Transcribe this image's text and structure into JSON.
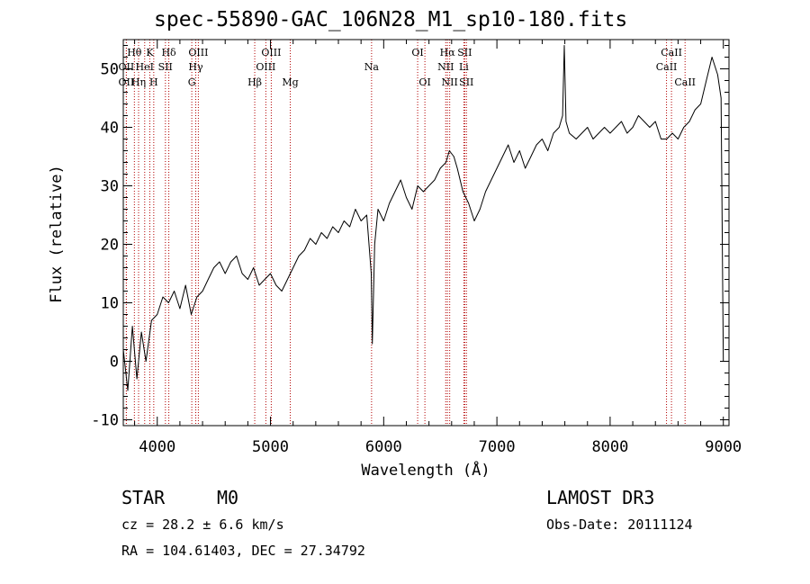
{
  "chart_data": {
    "type": "line",
    "title": "spec-55890-GAC_106N28_M1_sp10-180.fits",
    "xlabel": "Wavelength (Å)",
    "ylabel": "Flux (relative)",
    "xlim": [
      3700,
      9050
    ],
    "ylim": [
      -11,
      55
    ],
    "xticks": [
      4000,
      5000,
      6000,
      7000,
      8000,
      9000
    ],
    "yticks": [
      -10,
      0,
      10,
      20,
      30,
      40,
      50
    ],
    "grid": false,
    "series": [
      {
        "name": "spectrum",
        "color": "#000000",
        "x": [
          3700,
          3740,
          3780,
          3820,
          3860,
          3900,
          3950,
          4000,
          4050,
          4100,
          4150,
          4200,
          4250,
          4300,
          4350,
          4400,
          4450,
          4500,
          4550,
          4600,
          4650,
          4700,
          4750,
          4800,
          4850,
          4900,
          4950,
          5000,
          5050,
          5100,
          5150,
          5200,
          5250,
          5300,
          5350,
          5400,
          5450,
          5500,
          5550,
          5600,
          5650,
          5700,
          5750,
          5800,
          5850,
          5890,
          5900,
          5920,
          5950,
          6000,
          6050,
          6100,
          6150,
          6200,
          6250,
          6300,
          6350,
          6400,
          6450,
          6500,
          6550,
          6580,
          6620,
          6650,
          6700,
          6750,
          6800,
          6850,
          6900,
          6950,
          7000,
          7050,
          7100,
          7150,
          7200,
          7250,
          7300,
          7350,
          7400,
          7450,
          7500,
          7550,
          7580,
          7595,
          7610,
          7640,
          7700,
          7750,
          7800,
          7850,
          7900,
          7950,
          8000,
          8050,
          8100,
          8150,
          8200,
          8250,
          8300,
          8350,
          8400,
          8450,
          8500,
          8550,
          8600,
          8650,
          8700,
          8750,
          8800,
          8850,
          8900,
          8950,
          8980,
          9000
        ],
        "y": [
          2,
          -5,
          6,
          -3,
          5,
          0,
          7,
          8,
          11,
          10,
          12,
          9,
          13,
          8,
          11,
          12,
          14,
          16,
          17,
          15,
          17,
          18,
          15,
          14,
          16,
          13,
          14,
          15,
          13,
          12,
          14,
          16,
          18,
          19,
          21,
          20,
          22,
          21,
          23,
          22,
          24,
          23,
          26,
          24,
          25,
          15,
          3,
          20,
          26,
          24,
          27,
          29,
          31,
          28,
          26,
          30,
          29,
          30,
          31,
          33,
          34,
          36,
          35,
          33,
          29,
          27,
          24,
          26,
          29,
          31,
          33,
          35,
          37,
          34,
          36,
          33,
          35,
          37,
          38,
          36,
          39,
          40,
          42,
          54,
          41,
          39,
          38,
          39,
          40,
          38,
          39,
          40,
          39,
          40,
          41,
          39,
          40,
          42,
          41,
          40,
          41,
          38,
          38,
          39,
          38,
          40,
          41,
          43,
          44,
          48,
          52,
          49,
          45,
          0
        ]
      }
    ],
    "line_markers": [
      {
        "label": "Hθ",
        "wavelength": 3798,
        "row": 1
      },
      {
        "label": "OII",
        "wavelength": 3727,
        "row": 2
      },
      {
        "label": "HeI",
        "wavelength": 3889,
        "row": 2
      },
      {
        "label": "Hη",
        "wavelength": 3835,
        "row": 3
      },
      {
        "label": "OII",
        "wavelength": 3727,
        "row": 3
      },
      {
        "label": "K",
        "wavelength": 3934,
        "row": 1
      },
      {
        "label": "H",
        "wavelength": 3969,
        "row": 3
      },
      {
        "label": "SII",
        "wavelength": 4072,
        "row": 2
      },
      {
        "label": "Hδ",
        "wavelength": 4102,
        "row": 1
      },
      {
        "label": "OIII",
        "wavelength": 4363,
        "row": 1
      },
      {
        "label": "Hγ",
        "wavelength": 4340,
        "row": 2
      },
      {
        "label": "G",
        "wavelength": 4305,
        "row": 3
      },
      {
        "label": "OIII",
        "wavelength": 5007,
        "row": 1
      },
      {
        "label": "OIII",
        "wavelength": 4959,
        "row": 2
      },
      {
        "label": "Hβ",
        "wavelength": 4861,
        "row": 3
      },
      {
        "label": "Mg",
        "wavelength": 5175,
        "row": 3
      },
      {
        "label": "Na",
        "wavelength": 5893,
        "row": 2
      },
      {
        "label": "OI",
        "wavelength": 6300,
        "row": 1
      },
      {
        "label": "OI",
        "wavelength": 6364,
        "row": 3
      },
      {
        "label": "Hα",
        "wavelength": 6563,
        "row": 1
      },
      {
        "label": "SII",
        "wavelength": 6716,
        "row": 1
      },
      {
        "label": "NII",
        "wavelength": 6548,
        "row": 2
      },
      {
        "label": "Li",
        "wavelength": 6708,
        "row": 2
      },
      {
        "label": "NII",
        "wavelength": 6583,
        "row": 3
      },
      {
        "label": "SII",
        "wavelength": 6731,
        "row": 3
      },
      {
        "label": "CaII",
        "wavelength": 8542,
        "row": 1
      },
      {
        "label": "CaII",
        "wavelength": 8498,
        "row": 2
      },
      {
        "label": "CaII",
        "wavelength": 8662,
        "row": 3
      }
    ],
    "marker_line_color": "#b30000"
  },
  "info": {
    "object_class": "STAR",
    "subclass": "M0",
    "survey": "LAMOST DR3",
    "cz": "cz = 28.2 ± 6.6 km/s",
    "obs_date": "Obs-Date: 20111124",
    "coords": "RA = 104.61403, DEC =  27.34792"
  }
}
